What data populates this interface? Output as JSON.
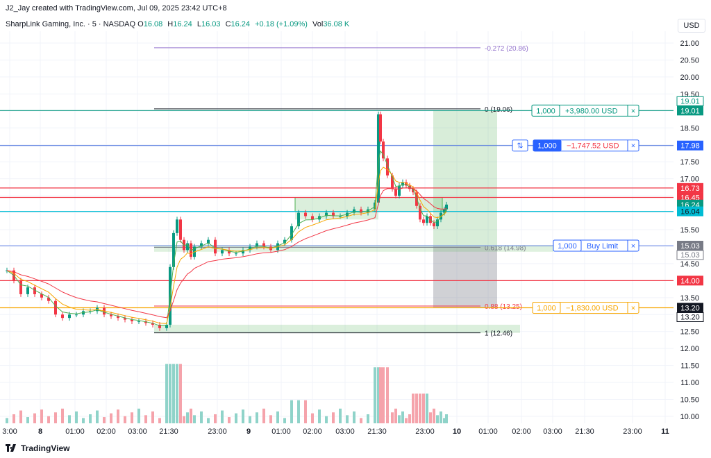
{
  "header": {
    "credit": "J2_Jay created with TradingView.com, Jul 09, 2025 23:42 UTC+8",
    "symbol_line": "SharpLink Gaming, Inc. · 5 · NASDAQ",
    "o_label": "O",
    "o_value": "16.08",
    "h_label": "H",
    "h_value": "16.24",
    "l_label": "L",
    "l_value": "16.03",
    "c_label": "C",
    "c_value": "16.24",
    "change": "+0.18 (+1.09%)",
    "vol_label": "Vol",
    "vol_value": "36.08 K"
  },
  "currency_button": "USD",
  "footer": {
    "brand": "TradingView"
  },
  "chart_data": {
    "type": "candlestick",
    "y_ticks": [
      "21.00",
      "20.50",
      "20.00",
      "19.50",
      "19.00",
      "18.50",
      "18.00",
      "17.50",
      "17.00",
      "16.50",
      "16.00",
      "15.50",
      "15.00",
      "14.50",
      "14.00",
      "13.50",
      "13.00",
      "12.50",
      "12.00",
      "11.50",
      "11.00",
      "10.50",
      "10.00"
    ],
    "x_ticks": [
      "3:00",
      "8",
      "01:00",
      "02:00",
      "03:00",
      "21:30",
      "23:00",
      "9",
      "01:00",
      "02:00",
      "03:00",
      "21:30",
      "23:00",
      "10",
      "01:00",
      "02:00",
      "03:00",
      "21:30",
      "23:00",
      "11"
    ],
    "fib_levels": [
      {
        "label": "-0.272 (20.86)",
        "price": 20.86
      },
      {
        "label": "0 (19.06)",
        "price": 19.06
      },
      {
        "label": "0.618 (14.98)",
        "price": 14.98
      },
      {
        "label": "0.88 (13.25)",
        "price": 13.25
      },
      {
        "label": "1 (12.46)",
        "price": 12.46
      }
    ],
    "orders": [
      {
        "qty": "1,000",
        "text": "+3,980.00 USD",
        "price": 19.01,
        "color": "#089981",
        "close": "×"
      },
      {
        "qty": "1,000",
        "text": "−1,747.52 USD",
        "price": 17.98,
        "color": "#2962ff",
        "close": "×",
        "flip": "⇅"
      },
      {
        "qty": "1,000",
        "text": "Buy Limit",
        "price": 15.03,
        "color": "#2962ff",
        "close": "×"
      },
      {
        "qty": "1,000",
        "text": "−1,830.00 USD",
        "price": 13.2,
        "color": "#f7a600",
        "close": "×"
      }
    ],
    "price_tags": [
      {
        "text": "19.01",
        "price": 19.01,
        "bg": "#089981",
        "fg": "#ffffff",
        "outline": "19.01"
      },
      {
        "text": "17.98",
        "price": 17.98,
        "bg": "#2962ff",
        "fg": "#ffffff"
      },
      {
        "text": "16.73",
        "price": 16.73,
        "bg": "#f23645",
        "fg": "#ffffff"
      },
      {
        "text": "16.45",
        "price": 16.45,
        "bg": "#f23645",
        "fg": "#ffffff"
      },
      {
        "text": "16.24",
        "price": 16.24,
        "bg": "#089981",
        "fg": "#ffffff"
      },
      {
        "text": "16.04",
        "price": 16.04,
        "bg": "#00bcd4",
        "fg": "#131722"
      },
      {
        "text": "15.03",
        "price": 15.03,
        "bg": "#787b86",
        "fg": "#ffffff",
        "outline": "15.03"
      },
      {
        "text": "14.00",
        "price": 14.0,
        "bg": "#f23645",
        "fg": "#ffffff"
      },
      {
        "text": "13.20",
        "price": 13.2,
        "bg": "#131722",
        "fg": "#ffffff",
        "outline": "13.20"
      }
    ],
    "horizontal_lines": [
      {
        "price": 19.01,
        "color": "#089981"
      },
      {
        "price": 17.98,
        "color": "#5b7fe0"
      },
      {
        "price": 16.73,
        "color": "#f23645"
      },
      {
        "price": 16.45,
        "color": "#f23645"
      },
      {
        "price": 16.04,
        "color": "#00bcd4"
      },
      {
        "price": 15.03,
        "color": "#8da4ec"
      },
      {
        "price": 14.0,
        "color": "#f23645"
      },
      {
        "price": 13.2,
        "color": "#f7a600"
      }
    ],
    "y_range": [
      9.85,
      21.2
    ],
    "colors": {
      "up": "#089981",
      "down": "#f23645",
      "vol_up": "#8fd3c9",
      "vol_down": "#f5a3ab",
      "ema_fast": "#f7a600",
      "ema_slow": "#f23645",
      "ema_green": "#4caf50"
    }
  }
}
